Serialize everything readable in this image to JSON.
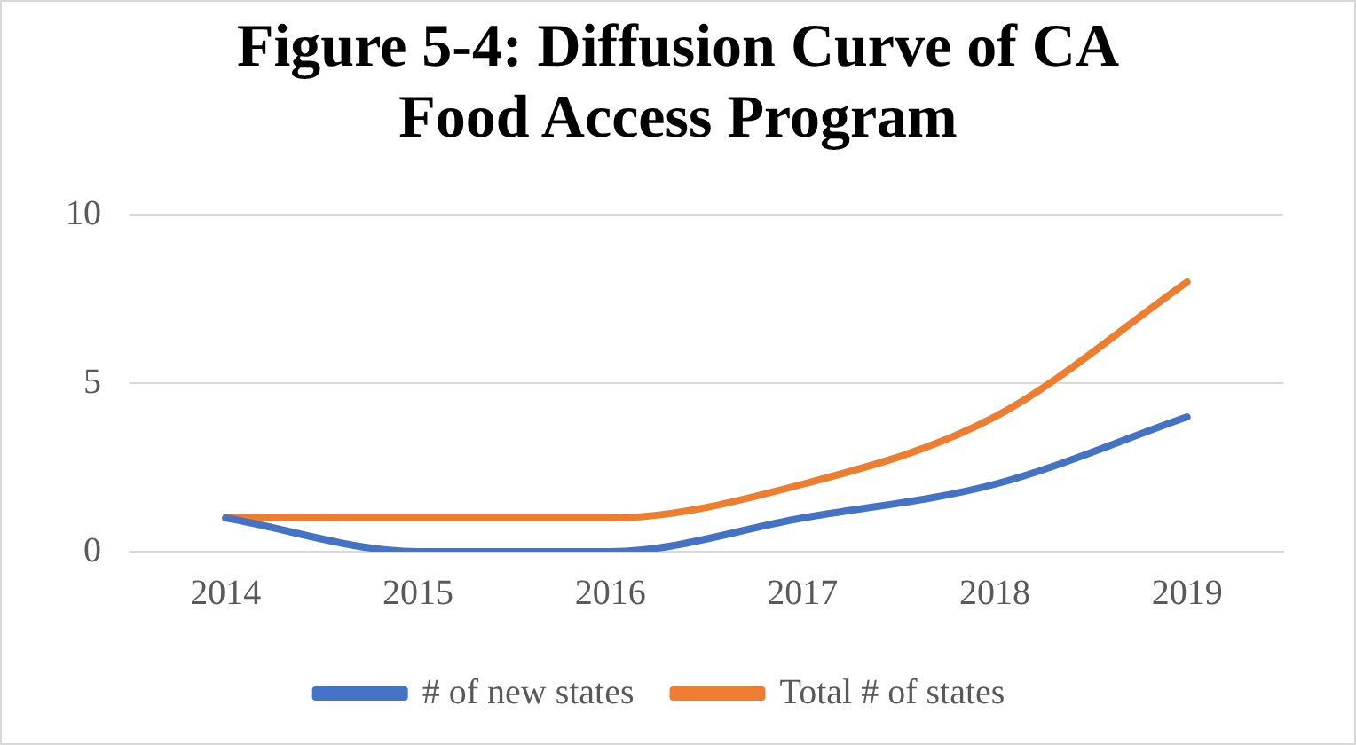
{
  "chart_data": {
    "type": "line",
    "title": "Figure 5-4: Diffusion Curve of CA Food Access Program",
    "categories": [
      "2014",
      "2015",
      "2016",
      "2017",
      "2018",
      "2019"
    ],
    "series": [
      {
        "name": "# of new states",
        "color": "#4472c4",
        "values": [
          1,
          0,
          0,
          1,
          2,
          4
        ]
      },
      {
        "name": "Total # of states",
        "color": "#ed7d31",
        "values": [
          1,
          1,
          1,
          2,
          4,
          8
        ]
      }
    ],
    "ylim": [
      0,
      10
    ],
    "yticks": [
      0,
      5,
      10
    ],
    "grid": "y",
    "legend": "bottom",
    "marker": "none",
    "line_style": "solid"
  }
}
